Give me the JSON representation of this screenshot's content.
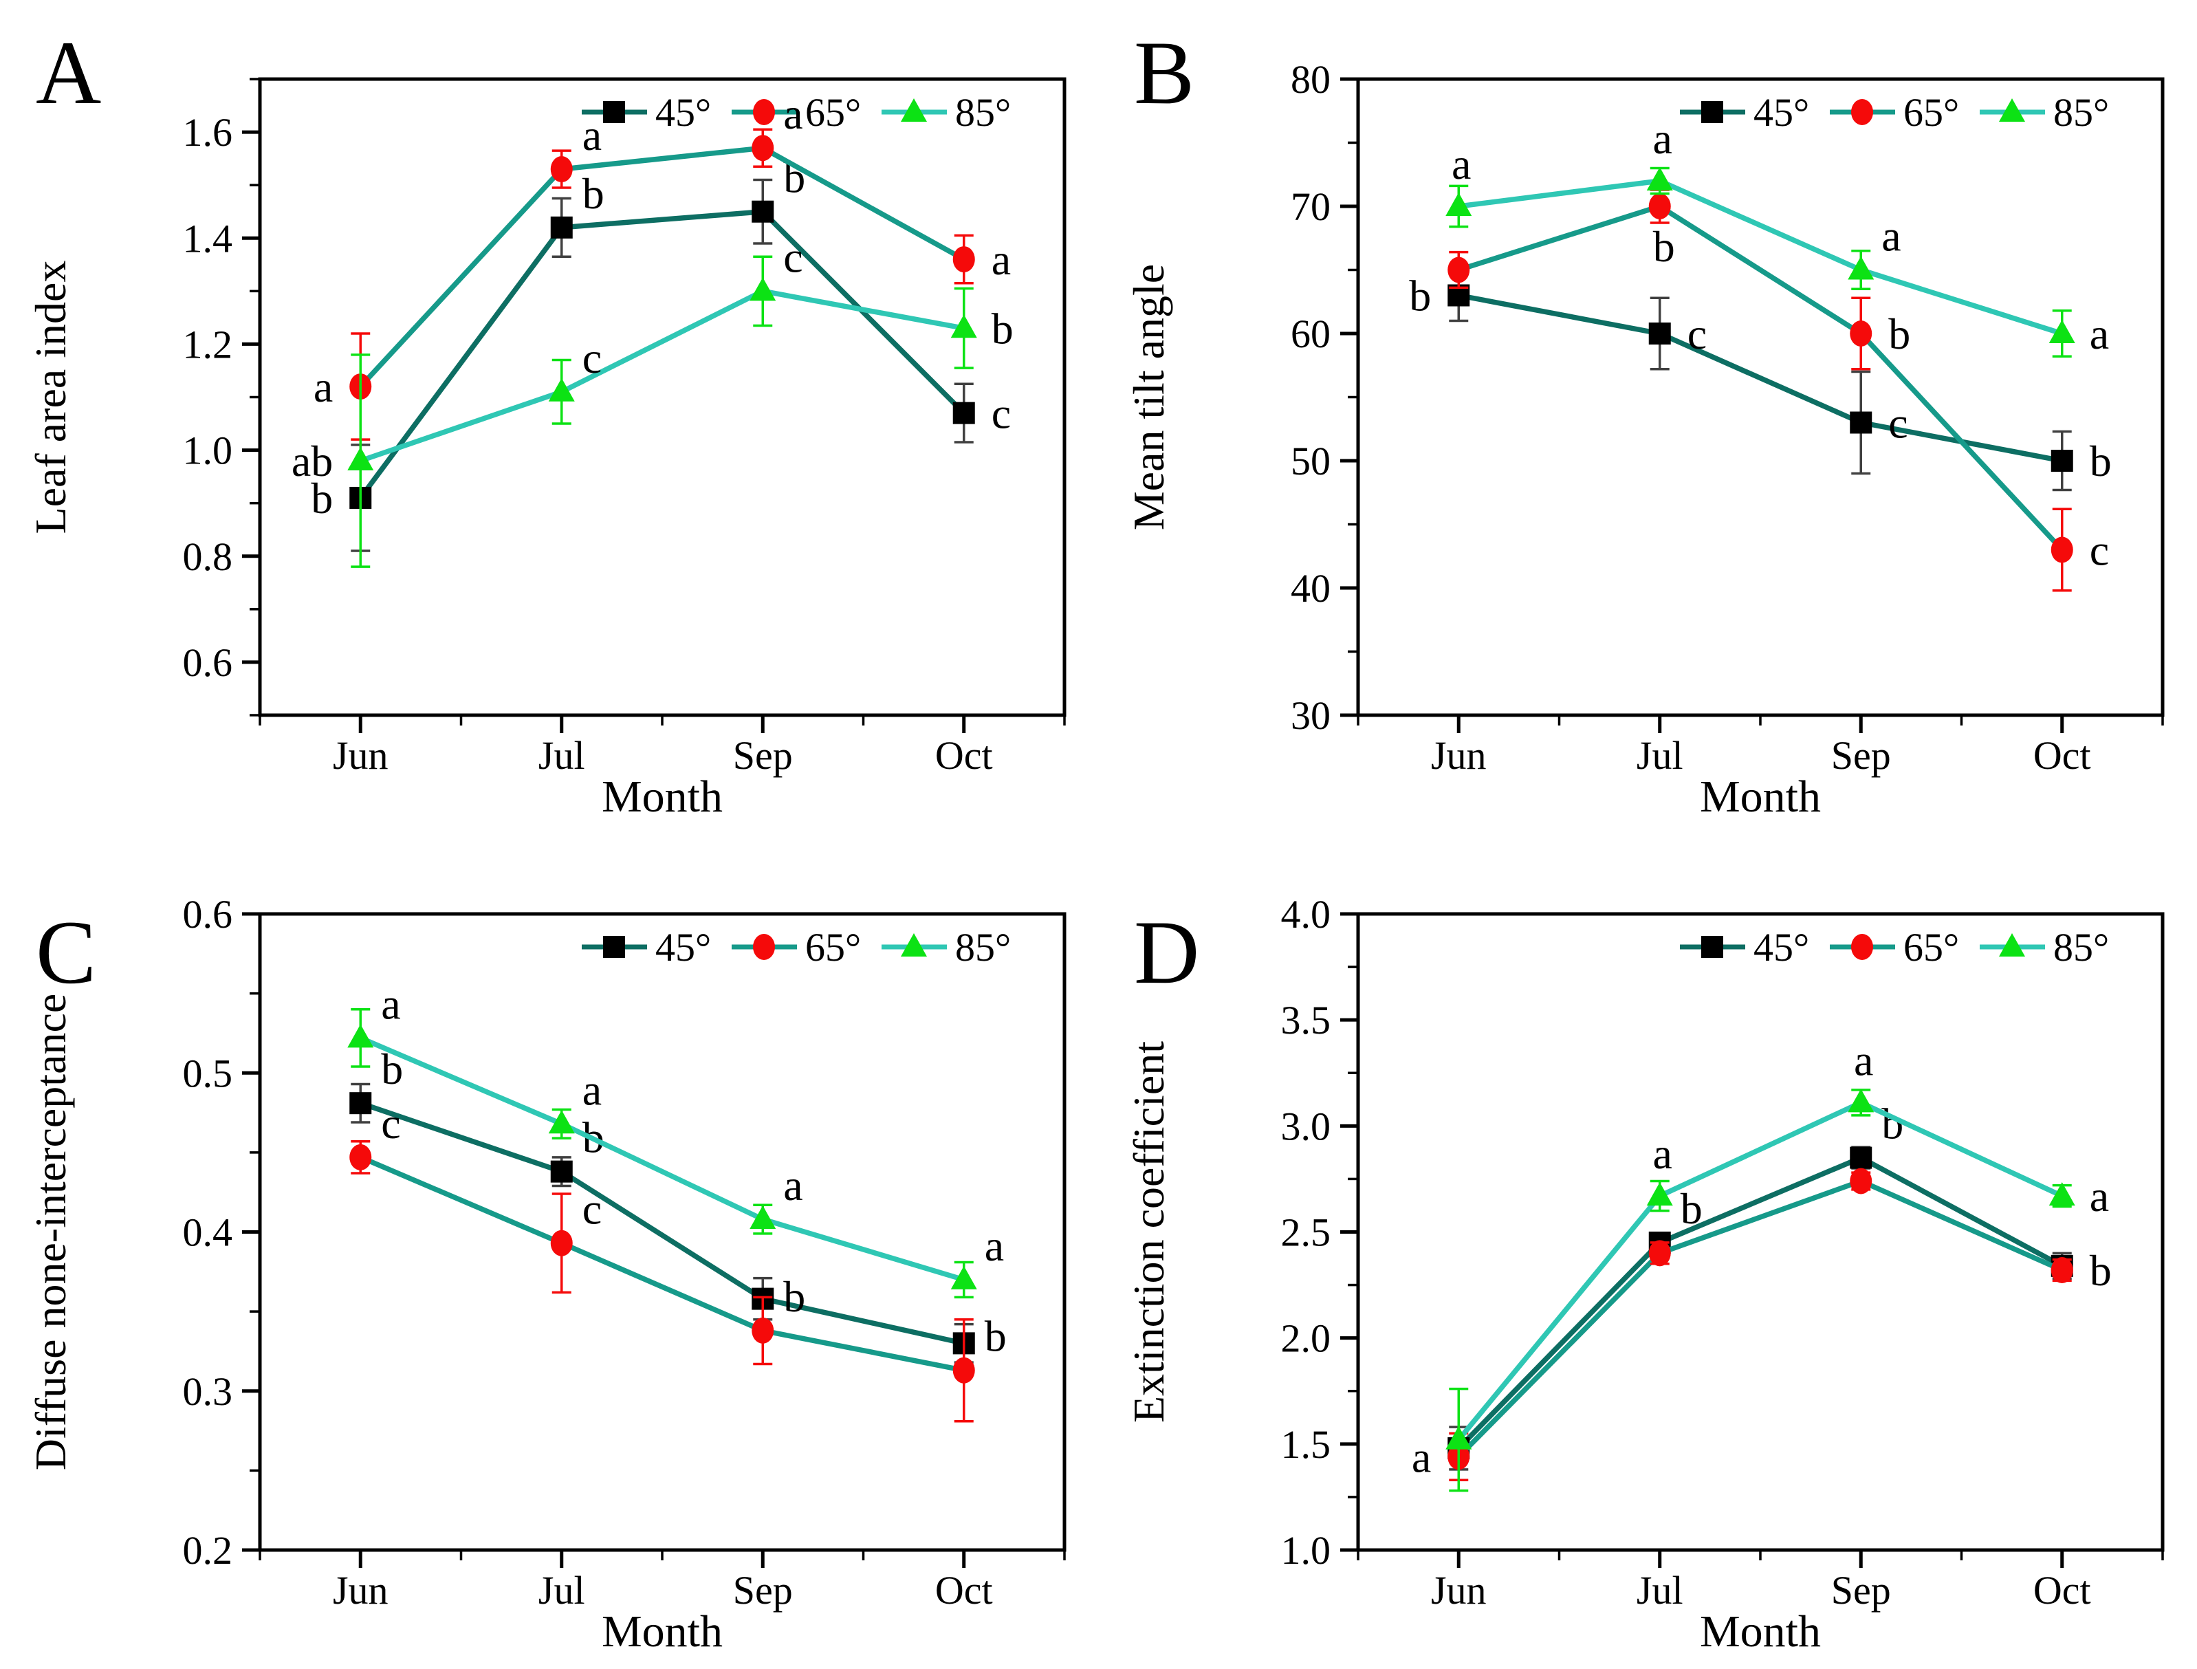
{
  "figure": {
    "background": "#ffffff",
    "text_color": "#000000",
    "axis_color": "#000000"
  },
  "chart_data": [
    {
      "type": "line",
      "panel_letter": "A",
      "ylabel": "Leaf area index",
      "xlabel": "Month",
      "categories": [
        "Jun",
        "Jul",
        "Sep",
        "Oct"
      ],
      "ylim": [
        0.5,
        1.7
      ],
      "ymajor": [
        0.6,
        0.8,
        1.0,
        1.2,
        1.4,
        1.6
      ],
      "yminor_step": 0.1,
      "ydecimals": 1,
      "legend_position": "top-inside",
      "grid": false,
      "series": [
        {
          "name": "45°",
          "marker": "square",
          "marker_color": "#000000",
          "line_color": "#0d6e63",
          "err_color": "#404040",
          "values": [
            0.91,
            1.42,
            1.45,
            1.07
          ],
          "errors": [
            0.1,
            0.055,
            0.06,
            0.055
          ],
          "letters": [
            "b",
            "b",
            "b",
            "c"
          ],
          "letter_pos": [
            "l",
            "ru",
            "ru",
            "r"
          ]
        },
        {
          "name": "65°",
          "marker": "circle",
          "marker_color": "#f50a0a",
          "line_color": "#169a8a",
          "err_color": "#f50a0a",
          "values": [
            1.12,
            1.53,
            1.57,
            1.36
          ],
          "errors": [
            0.1,
            0.035,
            0.035,
            0.045
          ],
          "letters": [
            "a",
            "a",
            "a",
            "a"
          ],
          "letter_pos": [
            "l",
            "ru",
            "ru",
            "r"
          ]
        },
        {
          "name": "85°",
          "marker": "triangle",
          "marker_color": "#0ce214",
          "line_color": "#2fc7b4",
          "err_color": "#0ce214",
          "values": [
            0.98,
            1.11,
            1.3,
            1.23
          ],
          "errors": [
            0.2,
            0.06,
            0.065,
            0.075
          ],
          "letters": [
            "ab",
            "c",
            "c",
            "b"
          ],
          "letter_pos": [
            "l",
            "ru",
            "ru",
            "r"
          ]
        }
      ]
    },
    {
      "type": "line",
      "panel_letter": "B",
      "ylabel": "Mean tilt angle",
      "xlabel": "Month",
      "categories": [
        "Jun",
        "Jul",
        "Sep",
        "Oct"
      ],
      "ylim": [
        30,
        80
      ],
      "ymajor": [
        30,
        40,
        50,
        60,
        70,
        80
      ],
      "yminor_step": 5,
      "ydecimals": 0,
      "legend_position": "top-inside",
      "grid": false,
      "series": [
        {
          "name": "45°",
          "marker": "square",
          "marker_color": "#000000",
          "line_color": "#0d6e63",
          "err_color": "#404040",
          "values": [
            63,
            60,
            53,
            50
          ],
          "errors": [
            2,
            2.8,
            4,
            2.3
          ],
          "letters": [
            "b",
            "c",
            "c",
            "b"
          ],
          "letter_pos": [
            "l",
            "r",
            "r",
            "r"
          ]
        },
        {
          "name": "65°",
          "marker": "circle",
          "marker_color": "#f50a0a",
          "line_color": "#169a8a",
          "err_color": "#f50a0a",
          "values": [
            65,
            70,
            60,
            43
          ],
          "errors": [
            1.4,
            1.3,
            2.8,
            3.2
          ],
          "letters": [
            "",
            "b",
            "b",
            "c"
          ],
          "letter_pos": [
            "",
            "d",
            "r",
            "r"
          ]
        },
        {
          "name": "85°",
          "marker": "triangle",
          "marker_color": "#0ce214",
          "line_color": "#2fc7b4",
          "err_color": "#0ce214",
          "values": [
            70,
            72,
            65,
            60
          ],
          "errors": [
            1.6,
            1.0,
            1.5,
            1.8
          ],
          "letters": [
            "a",
            "a",
            "a",
            "a"
          ],
          "letter_pos": [
            "u",
            "u",
            "ru",
            "r"
          ]
        }
      ]
    },
    {
      "type": "line",
      "panel_letter": "C",
      "ylabel": "Diffuse none-interceptance",
      "xlabel": "Month",
      "categories": [
        "Jun",
        "Jul",
        "Sep",
        "Oct"
      ],
      "ylim": [
        0.2,
        0.6
      ],
      "ymajor": [
        0.2,
        0.3,
        0.4,
        0.5,
        0.6
      ],
      "yminor_step": 0.05,
      "ydecimals": 1,
      "legend_position": "top-inside",
      "grid": false,
      "series": [
        {
          "name": "45°",
          "marker": "square",
          "marker_color": "#000000",
          "line_color": "#0d6e63",
          "err_color": "#404040",
          "values": [
            0.481,
            0.438,
            0.358,
            0.33
          ],
          "errors": [
            0.012,
            0.009,
            0.013,
            0.012
          ],
          "letters": [
            "b",
            "b",
            "",
            ""
          ],
          "letter_pos": [
            "ru",
            "ru",
            "",
            ""
          ]
        },
        {
          "name": "65°",
          "marker": "circle",
          "marker_color": "#f50a0a",
          "line_color": "#169a8a",
          "err_color": "#f50a0a",
          "values": [
            0.447,
            0.393,
            0.338,
            0.313
          ],
          "errors": [
            0.01,
            0.031,
            0.021,
            0.032
          ],
          "letters": [
            "c",
            "c",
            "b",
            "b"
          ],
          "letter_pos": [
            "ru",
            "ru",
            "ru",
            "ru"
          ]
        },
        {
          "name": "85°",
          "marker": "triangle",
          "marker_color": "#0ce214",
          "line_color": "#2fc7b4",
          "err_color": "#0ce214",
          "values": [
            0.522,
            0.468,
            0.408,
            0.37
          ],
          "errors": [
            0.018,
            0.009,
            0.009,
            0.011
          ],
          "letters": [
            "a",
            "a",
            "a",
            "a"
          ],
          "letter_pos": [
            "ru",
            "ru",
            "ru",
            "ru"
          ]
        }
      ]
    },
    {
      "type": "line",
      "panel_letter": "D",
      "ylabel": "Extinction coefficient",
      "xlabel": "Month",
      "categories": [
        "Jun",
        "Jul",
        "Sep",
        "Oct"
      ],
      "ylim": [
        1.0,
        4.0
      ],
      "ymajor": [
        1.0,
        1.5,
        2.0,
        2.5,
        3.0,
        3.5,
        4.0
      ],
      "yminor_step": 0.25,
      "ydecimals": 1,
      "legend_position": "top-inside",
      "grid": false,
      "series": [
        {
          "name": "45°",
          "marker": "square",
          "marker_color": "#000000",
          "line_color": "#0d6e63",
          "err_color": "#404040",
          "values": [
            1.48,
            2.45,
            2.85,
            2.34
          ],
          "errors": [
            0.1,
            0.04,
            0.05,
            0.06
          ],
          "letters": [
            "",
            "b",
            "b",
            ""
          ],
          "letter_pos": [
            "",
            "ru",
            "ru",
            ""
          ]
        },
        {
          "name": "65°",
          "marker": "circle",
          "marker_color": "#f50a0a",
          "line_color": "#169a8a",
          "err_color": "#f50a0a",
          "values": [
            1.44,
            2.4,
            2.74,
            2.32
          ],
          "errors": [
            0.11,
            0.05,
            0.04,
            0.05
          ],
          "letters": [
            "a",
            "",
            "",
            "b"
          ],
          "letter_pos": [
            "l",
            "",
            "",
            "r"
          ]
        },
        {
          "name": "85°",
          "marker": "triangle",
          "marker_color": "#0ce214",
          "line_color": "#2fc7b4",
          "err_color": "#0ce214",
          "values": [
            1.52,
            2.67,
            3.11,
            2.67
          ],
          "errors": [
            0.24,
            0.07,
            0.06,
            0.05
          ],
          "letters": [
            "",
            "a",
            "a",
            "a"
          ],
          "letter_pos": [
            "",
            "u",
            "u",
            "r"
          ]
        }
      ]
    }
  ]
}
